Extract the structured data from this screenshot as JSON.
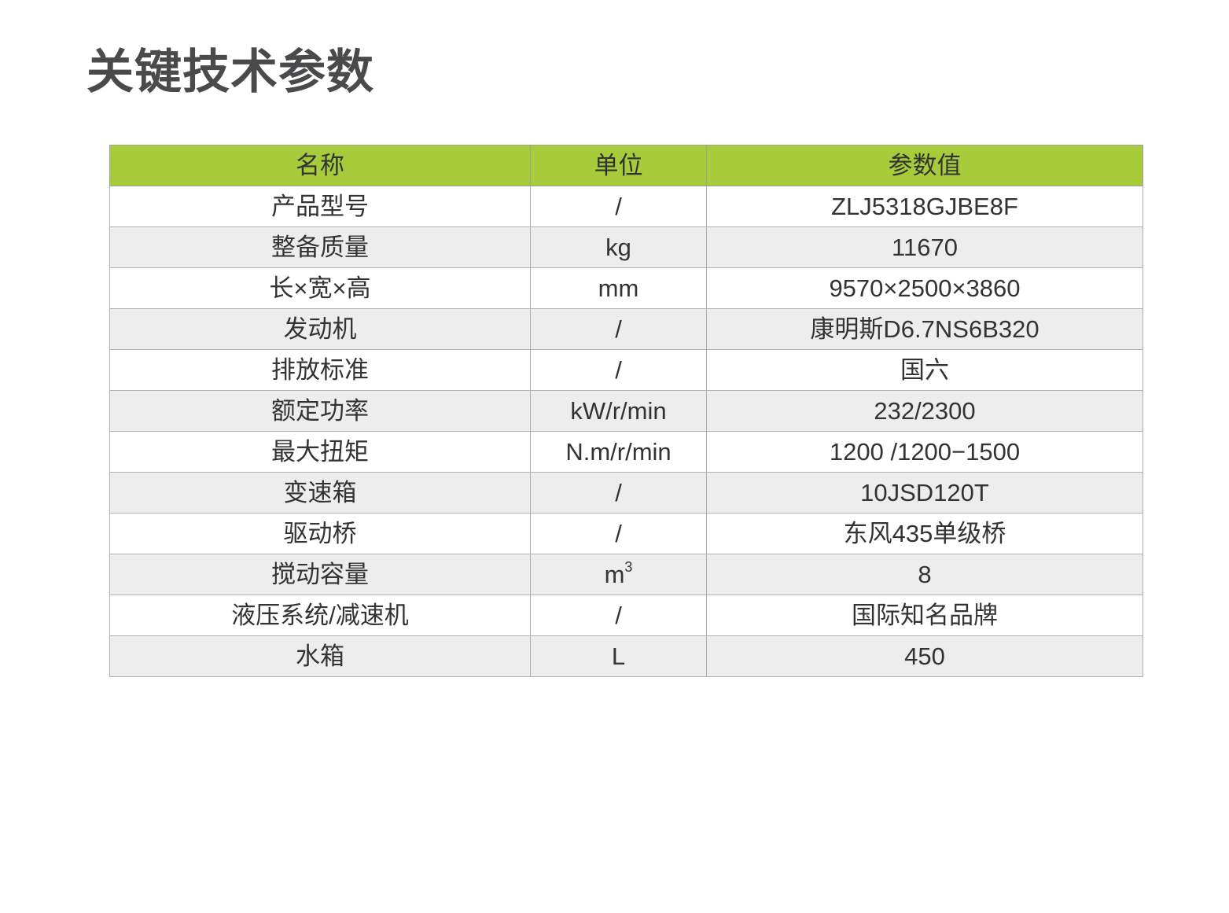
{
  "title": "关键技术参数",
  "colors": {
    "header_bg": "#a8cb3b",
    "alt_row_bg": "#ededee",
    "border": "#b0b0b0"
  },
  "table": {
    "headers": [
      "名称",
      "单位",
      "参数值"
    ],
    "rows": [
      {
        "name": "产品型号",
        "unit": "/",
        "value": "ZLJ5318GJBE8F"
      },
      {
        "name": "整备质量",
        "unit": "kg",
        "value": "11670"
      },
      {
        "name": "长×宽×高",
        "unit": "mm",
        "value": "9570×2500×3860"
      },
      {
        "name": "发动机",
        "unit": "/",
        "value": "康明斯D6.7NS6B320"
      },
      {
        "name": "排放标准",
        "unit": "/",
        "value": "国六"
      },
      {
        "name": "额定功率",
        "unit": "kW/r/min",
        "value": "232/2300"
      },
      {
        "name": "最大扭矩",
        "unit": "N.m/r/min",
        "value": "1200 /1200−1500"
      },
      {
        "name": "变速箱",
        "unit": "/",
        "value": "10JSD120T"
      },
      {
        "name": "驱动桥",
        "unit": "/",
        "value": "东风435单级桥"
      },
      {
        "name": "搅动容量",
        "unit": "m",
        "unit_sup": "3",
        "value": "8"
      },
      {
        "name": "液压系统/减速机",
        "unit": "/",
        "value": "国际知名品牌"
      },
      {
        "name": "水箱",
        "unit": "L",
        "value": "450"
      }
    ]
  }
}
